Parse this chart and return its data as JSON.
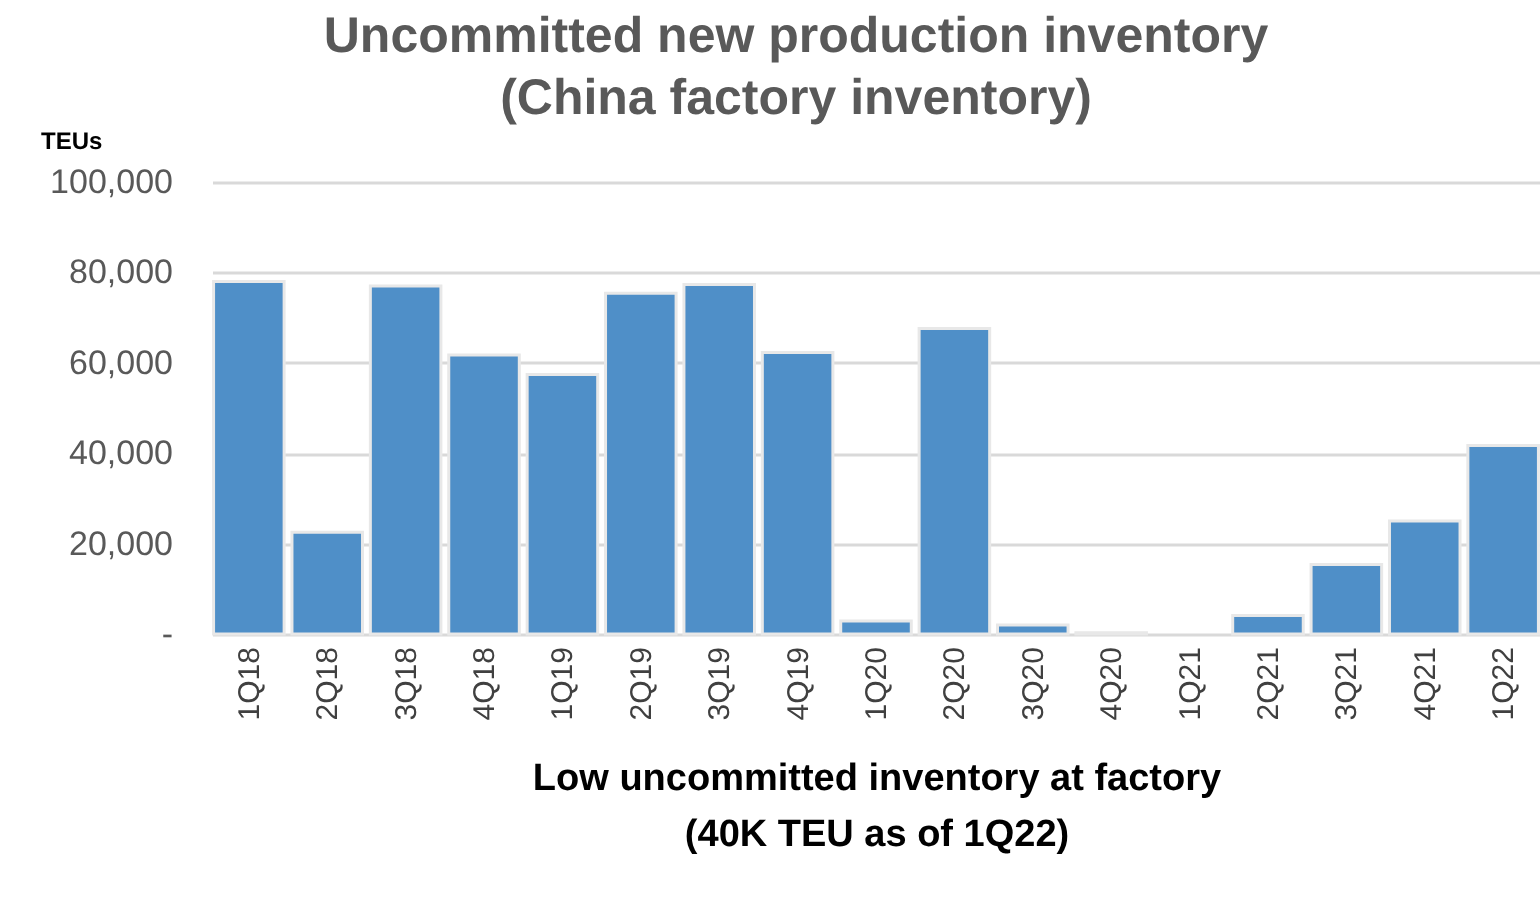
{
  "chart_data": {
    "type": "bar",
    "title": [
      "Uncommitted new production inventory",
      "(China factory inventory)"
    ],
    "ylabel": "TEUs",
    "xlabel": [
      "Low uncommitted inventory at factory",
      "(40K TEU as of 1Q22)"
    ],
    "categories": [
      "1Q18",
      "2Q18",
      "3Q18",
      "4Q18",
      "1Q19",
      "2Q19",
      "3Q19",
      "4Q19",
      "1Q20",
      "2Q20",
      "3Q20",
      "4Q20",
      "1Q21",
      "2Q21",
      "3Q21",
      "4Q21",
      "1Q22"
    ],
    "values": [
      78000,
      22500,
      77000,
      61700,
      57400,
      75400,
      77300,
      62300,
      2900,
      67600,
      2000,
      300,
      0,
      4100,
      15400,
      25000,
      41700
    ],
    "color": "#4f8fc8",
    "ylim": [
      0,
      100000
    ],
    "yticks": [
      {
        "value": 0,
        "label": "-"
      },
      {
        "value": 20000,
        "label": "20,000"
      },
      {
        "value": 40000,
        "label": "40,000"
      },
      {
        "value": 60000,
        "label": "60,000"
      },
      {
        "value": 80000,
        "label": "80,000"
      },
      {
        "value": 100000,
        "label": "100,000"
      }
    ],
    "grid": "y"
  }
}
